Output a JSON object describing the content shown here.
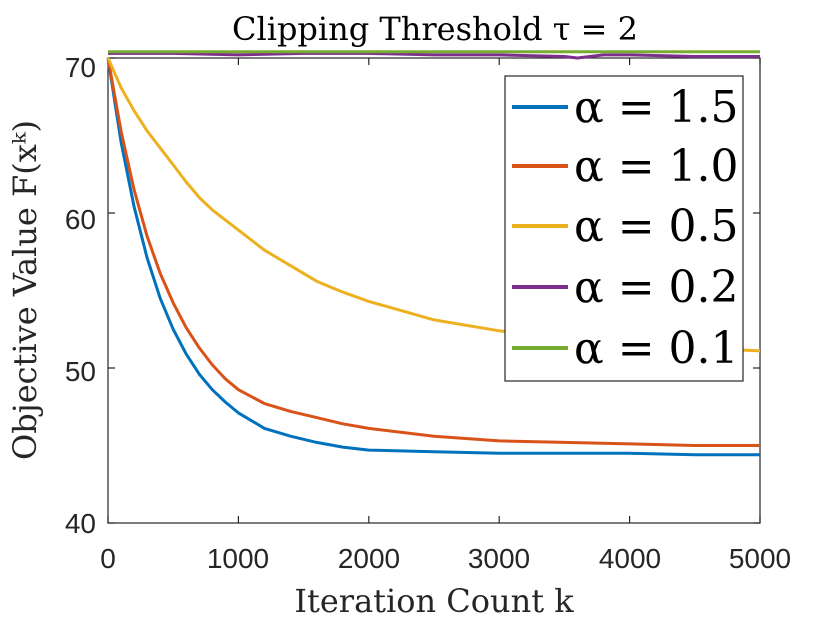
{
  "chart_data": {
    "type": "line",
    "title": "Clipping Threshold τ = 2",
    "xlabel": "Iteration Count k",
    "ylabel": "Objective Value F(xᵏ)",
    "xlim": [
      0,
      5000
    ],
    "ylim": [
      40,
      70
    ],
    "xticks": [
      "0",
      "1000",
      "2000",
      "3000",
      "4000",
      "5000"
    ],
    "yticks": [
      "40",
      "50",
      "60",
      "70"
    ],
    "grid": false,
    "legend_position": "top-right",
    "series": [
      {
        "name": "α = 1.5",
        "color": "#0072BD",
        "x": [
          0,
          100,
          200,
          300,
          400,
          500,
          600,
          700,
          800,
          900,
          1000,
          1200,
          1400,
          1600,
          1800,
          2000,
          2500,
          3000,
          3500,
          4000,
          4500,
          5000
        ],
        "y": [
          70.0,
          64.6,
          60.4,
          57.1,
          54.5,
          52.5,
          50.9,
          49.6,
          48.6,
          47.8,
          47.1,
          46.1,
          45.6,
          45.2,
          44.9,
          44.7,
          44.6,
          44.5,
          44.5,
          44.5,
          44.4,
          44.4
        ]
      },
      {
        "name": "α = 1.0",
        "color": "#D95319",
        "x": [
          0,
          100,
          200,
          300,
          400,
          500,
          600,
          700,
          800,
          900,
          1000,
          1200,
          1400,
          1600,
          1800,
          2000,
          2500,
          3000,
          3500,
          4000,
          4500,
          5000
        ],
        "y": [
          70.0,
          65.3,
          61.5,
          58.5,
          56.1,
          54.2,
          52.6,
          51.3,
          50.2,
          49.3,
          48.6,
          47.7,
          47.2,
          46.8,
          46.4,
          46.1,
          45.6,
          45.3,
          45.2,
          45.1,
          45.0,
          45.0
        ]
      },
      {
        "name": "α = 0.5",
        "color": "#EDB120",
        "x": [
          0,
          100,
          200,
          300,
          400,
          500,
          600,
          700,
          800,
          1000,
          1200,
          1400,
          1600,
          1800,
          2000,
          2500,
          3000,
          3500,
          4000,
          4500,
          5000
        ],
        "y": [
          70.0,
          68.1,
          66.6,
          65.3,
          64.2,
          63.1,
          62.0,
          61.0,
          60.2,
          58.9,
          57.6,
          56.6,
          55.6,
          54.9,
          54.3,
          53.1,
          52.4,
          51.9,
          51.6,
          51.3,
          51.1
        ]
      },
      {
        "name": "α = 0.2",
        "color": "#7E2F8E",
        "x": [
          0,
          500,
          1000,
          1500,
          2000,
          2500,
          3000,
          3500,
          3600,
          3800,
          4000,
          4500,
          5000
        ],
        "y": [
          70.3,
          70.3,
          70.2,
          70.3,
          70.3,
          70.2,
          70.2,
          70.1,
          70.0,
          70.2,
          70.2,
          70.1,
          70.1
        ]
      },
      {
        "name": "α = 0.1",
        "color": "#77AC30",
        "x": [
          0,
          1000,
          2000,
          3000,
          4000,
          5000
        ],
        "y": [
          70.4,
          70.4,
          70.4,
          70.4,
          70.4,
          70.4
        ]
      }
    ]
  }
}
